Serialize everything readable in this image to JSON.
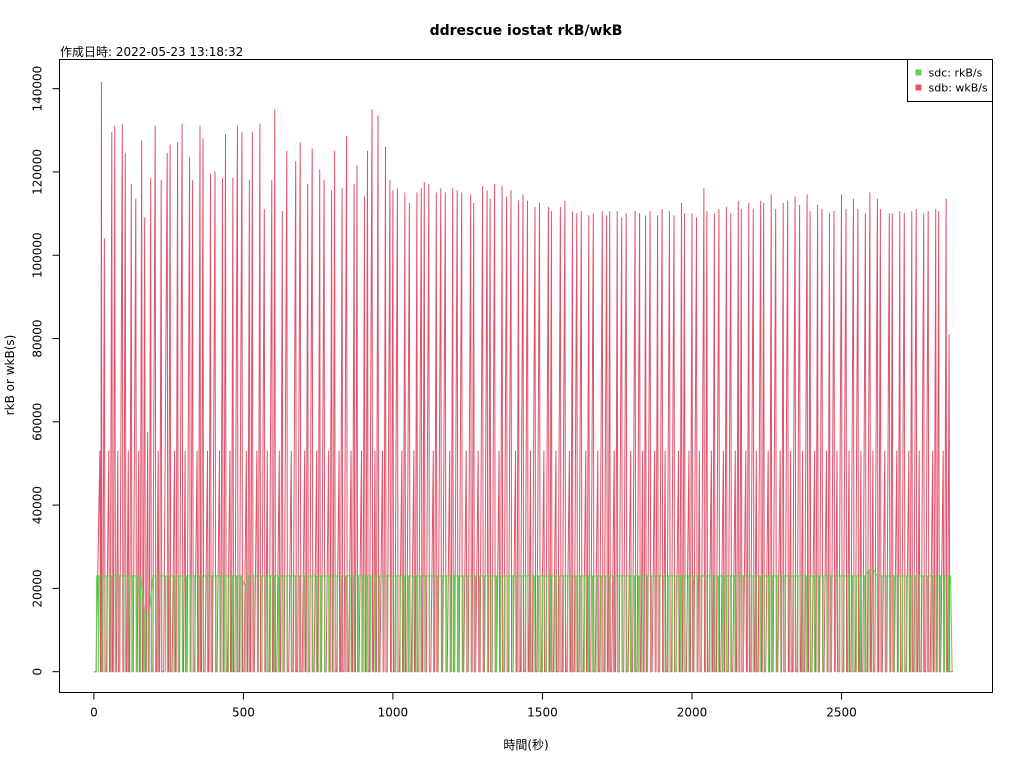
{
  "chart_data": {
    "type": "line",
    "title": "ddrescue iostat rkB/wkB",
    "subtitle": "作成日時:  2022-05-23 13:18:32",
    "xlabel": "時間(秒)",
    "ylabel": "rkB or wkB(s)",
    "xlim": [
      -115,
      3005
    ],
    "ylim": [
      -5000,
      147000
    ],
    "x_ticks": [
      0,
      500,
      1000,
      1500,
      2000,
      2500
    ],
    "y_ticks": [
      0,
      20000,
      40000,
      60000,
      80000,
      100000,
      120000,
      140000
    ],
    "grid": false,
    "legend_position": "top-right",
    "duration": 2870,
    "series": [
      {
        "name": "sdc: rkB/s",
        "color": "#61D04F",
        "pattern": "square-wave",
        "high_level": 23000,
        "low_level": 0,
        "notes_points": [
          {
            "x": 170,
            "y": 14000
          },
          {
            "x": 500,
            "y": 20500
          },
          {
            "x": 2590,
            "y": 24500
          }
        ]
      },
      {
        "name": "sdb: wkB/s",
        "color": "#DF536B",
        "pattern": "spikes",
        "peaks": [
          [
            20,
            53000
          ],
          [
            25,
            141500
          ],
          [
            35,
            104000
          ],
          [
            50,
            53000
          ],
          [
            60,
            129500
          ],
          [
            70,
            131000
          ],
          [
            80,
            53000
          ],
          [
            95,
            131500
          ],
          [
            105,
            124500
          ],
          [
            115,
            53000
          ],
          [
            125,
            117000
          ],
          [
            140,
            113500
          ],
          [
            150,
            53000
          ],
          [
            160,
            127500
          ],
          [
            170,
            109000
          ],
          [
            180,
            57500
          ],
          [
            190,
            118500
          ],
          [
            205,
            131000
          ],
          [
            215,
            53000
          ],
          [
            225,
            118000
          ],
          [
            245,
            124500
          ],
          [
            255,
            126500
          ],
          [
            270,
            53000
          ],
          [
            280,
            127000
          ],
          [
            295,
            131500
          ],
          [
            305,
            53000
          ],
          [
            320,
            123500
          ],
          [
            330,
            118000
          ],
          [
            345,
            53000
          ],
          [
            355,
            131000
          ],
          [
            365,
            128000
          ],
          [
            380,
            53000
          ],
          [
            390,
            119500
          ],
          [
            405,
            120000
          ],
          [
            420,
            53000
          ],
          [
            430,
            118500
          ],
          [
            440,
            129000
          ],
          [
            455,
            53000
          ],
          [
            465,
            118500
          ],
          [
            480,
            131000
          ],
          [
            495,
            129500
          ],
          [
            510,
            53000
          ],
          [
            520,
            118000
          ],
          [
            530,
            129500
          ],
          [
            545,
            53000
          ],
          [
            555,
            131500
          ],
          [
            570,
            111000
          ],
          [
            580,
            53000
          ],
          [
            595,
            118000
          ],
          [
            605,
            135000
          ],
          [
            620,
            53000
          ],
          [
            630,
            110500
          ],
          [
            645,
            125000
          ],
          [
            660,
            53000
          ],
          [
            675,
            122500
          ],
          [
            690,
            127000
          ],
          [
            705,
            53000
          ],
          [
            715,
            117000
          ],
          [
            730,
            125500
          ],
          [
            745,
            53000
          ],
          [
            755,
            120500
          ],
          [
            770,
            118000
          ],
          [
            785,
            53000
          ],
          [
            795,
            115500
          ],
          [
            805,
            125000
          ],
          [
            820,
            53000
          ],
          [
            830,
            116000
          ],
          [
            845,
            128500
          ],
          [
            860,
            53000
          ],
          [
            870,
            117000
          ],
          [
            880,
            121500
          ],
          [
            895,
            53000
          ],
          [
            905,
            114000
          ],
          [
            915,
            125000
          ],
          [
            930,
            135000
          ],
          [
            940,
            53000
          ],
          [
            950,
            133500
          ],
          [
            965,
            53000
          ],
          [
            975,
            126000
          ],
          [
            990,
            118000
          ],
          [
            1000,
            115500
          ],
          [
            1015,
            116000
          ],
          [
            1030,
            53000
          ],
          [
            1040,
            115000
          ],
          [
            1055,
            112500
          ],
          [
            1070,
            53000
          ],
          [
            1080,
            115000
          ],
          [
            1095,
            116000
          ],
          [
            1105,
            117500
          ],
          [
            1120,
            117000
          ],
          [
            1135,
            53000
          ],
          [
            1145,
            115000
          ],
          [
            1160,
            116000
          ],
          [
            1175,
            115000
          ],
          [
            1190,
            53000
          ],
          [
            1200,
            116000
          ],
          [
            1215,
            115500
          ],
          [
            1230,
            115000
          ],
          [
            1245,
            53000
          ],
          [
            1260,
            114500
          ],
          [
            1270,
            112500
          ],
          [
            1285,
            53000
          ],
          [
            1300,
            116500
          ],
          [
            1315,
            115500
          ],
          [
            1325,
            113500
          ],
          [
            1340,
            117000
          ],
          [
            1355,
            53000
          ],
          [
            1365,
            116500
          ],
          [
            1380,
            114000
          ],
          [
            1395,
            115500
          ],
          [
            1410,
            53000
          ],
          [
            1420,
            113000
          ],
          [
            1435,
            114500
          ],
          [
            1450,
            113000
          ],
          [
            1460,
            53000
          ],
          [
            1475,
            111500
          ],
          [
            1490,
            112500
          ],
          [
            1505,
            53000
          ],
          [
            1520,
            111500
          ],
          [
            1530,
            110500
          ],
          [
            1545,
            53000
          ],
          [
            1560,
            111500
          ],
          [
            1575,
            113000
          ],
          [
            1590,
            53000
          ],
          [
            1600,
            110500
          ],
          [
            1615,
            110000
          ],
          [
            1630,
            110500
          ],
          [
            1645,
            53000
          ],
          [
            1655,
            109500
          ],
          [
            1670,
            110000
          ],
          [
            1685,
            53000
          ],
          [
            1700,
            110500
          ],
          [
            1715,
            109500
          ],
          [
            1725,
            110500
          ],
          [
            1740,
            53000
          ],
          [
            1750,
            110500
          ],
          [
            1765,
            109000
          ],
          [
            1780,
            110000
          ],
          [
            1795,
            53000
          ],
          [
            1810,
            110500
          ],
          [
            1825,
            110000
          ],
          [
            1835,
            53000
          ],
          [
            1845,
            109500
          ],
          [
            1860,
            110500
          ],
          [
            1875,
            53000
          ],
          [
            1885,
            109500
          ],
          [
            1900,
            111000
          ],
          [
            1910,
            53000
          ],
          [
            1925,
            110500
          ],
          [
            1940,
            109500
          ],
          [
            1955,
            53000
          ],
          [
            1965,
            112500
          ],
          [
            1975,
            110000
          ],
          [
            1990,
            53000
          ],
          [
            2000,
            110000
          ],
          [
            2015,
            109000
          ],
          [
            2025,
            53000
          ],
          [
            2040,
            116000
          ],
          [
            2050,
            110500
          ],
          [
            2065,
            53000
          ],
          [
            2075,
            110000
          ],
          [
            2090,
            111000
          ],
          [
            2105,
            53000
          ],
          [
            2115,
            111500
          ],
          [
            2130,
            110000
          ],
          [
            2145,
            53000
          ],
          [
            2155,
            113000
          ],
          [
            2165,
            111000
          ],
          [
            2180,
            53000
          ],
          [
            2190,
            112500
          ],
          [
            2205,
            111000
          ],
          [
            2215,
            53000
          ],
          [
            2230,
            113000
          ],
          [
            2240,
            112500
          ],
          [
            2255,
            53000
          ],
          [
            2265,
            114500
          ],
          [
            2280,
            111000
          ],
          [
            2295,
            53000
          ],
          [
            2305,
            112500
          ],
          [
            2320,
            113000
          ],
          [
            2330,
            53000
          ],
          [
            2345,
            114000
          ],
          [
            2360,
            112000
          ],
          [
            2370,
            53000
          ],
          [
            2385,
            114500
          ],
          [
            2395,
            110500
          ],
          [
            2410,
            53000
          ],
          [
            2420,
            112000
          ],
          [
            2435,
            111000
          ],
          [
            2450,
            53000
          ],
          [
            2460,
            110000
          ],
          [
            2475,
            110500
          ],
          [
            2485,
            53000
          ],
          [
            2500,
            114500
          ],
          [
            2515,
            111000
          ],
          [
            2525,
            53000
          ],
          [
            2540,
            113500
          ],
          [
            2555,
            111000
          ],
          [
            2565,
            53000
          ],
          [
            2580,
            110000
          ],
          [
            2595,
            115000
          ],
          [
            2605,
            53000
          ],
          [
            2620,
            113500
          ],
          [
            2630,
            111000
          ],
          [
            2645,
            53000
          ],
          [
            2660,
            110000
          ],
          [
            2670,
            110000
          ],
          [
            2685,
            53000
          ],
          [
            2695,
            110500
          ],
          [
            2710,
            110000
          ],
          [
            2725,
            53000
          ],
          [
            2735,
            110500
          ],
          [
            2750,
            111000
          ],
          [
            2760,
            53000
          ],
          [
            2775,
            110000
          ],
          [
            2790,
            110500
          ],
          [
            2805,
            53000
          ],
          [
            2815,
            111000
          ],
          [
            2825,
            110500
          ],
          [
            2840,
            53000
          ],
          [
            2850,
            113500
          ],
          [
            2860,
            81000
          ],
          [
            2870,
            0
          ]
        ]
      }
    ]
  }
}
